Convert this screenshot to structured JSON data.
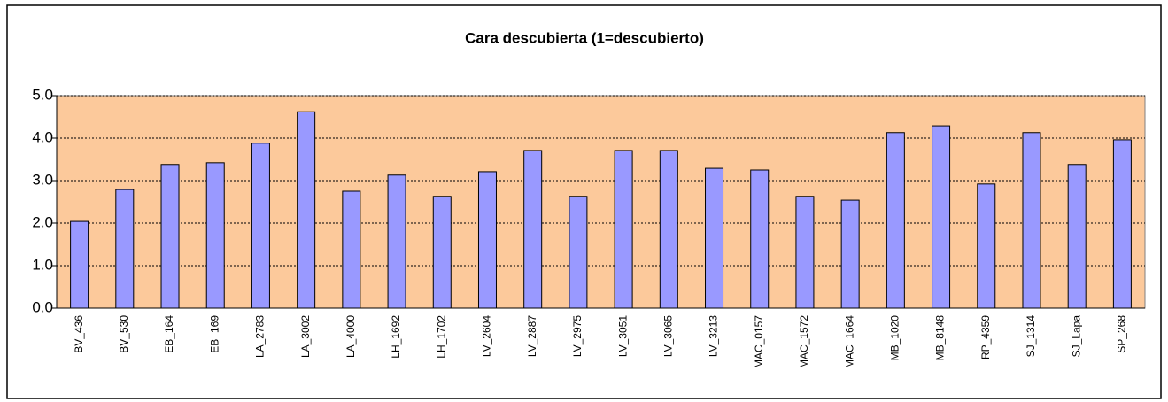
{
  "chart_data": {
    "type": "bar",
    "title": "Cara descubierta (1=descubierto)",
    "categories": [
      "BV_436",
      "BV_530",
      "EB_164",
      "EB_169",
      "LA_2783",
      "LA_3002",
      "LA_4000",
      "LH_1692",
      "LH_1702",
      "LV_2604",
      "LV_2887",
      "LV_2975",
      "LV_3051",
      "LV_3065",
      "LV_3213",
      "MAC_0157",
      "MAC_1572",
      "MAC_1664",
      "MB_1020",
      "MB_8148",
      "RP_4359",
      "SJ_1314",
      "SJ_Lapa",
      "SP_268"
    ],
    "values": [
      2.04,
      2.79,
      3.38,
      3.42,
      3.88,
      4.62,
      2.75,
      3.13,
      2.63,
      3.21,
      3.71,
      2.63,
      3.71,
      3.71,
      3.29,
      3.25,
      2.63,
      2.54,
      4.13,
      4.29,
      2.92,
      4.13,
      3.38,
      3.96
    ],
    "color": "#9999ff",
    "plot_background": "#fcc99b",
    "ylim": [
      0,
      5
    ],
    "yticks": [
      {
        "value": 0,
        "label": "0.0"
      },
      {
        "value": 1,
        "label": "1.0"
      },
      {
        "value": 2,
        "label": "2.0"
      },
      {
        "value": 3,
        "label": "3.0"
      },
      {
        "value": 4,
        "label": "4.0"
      },
      {
        "value": 5,
        "label": "5.0"
      }
    ],
    "grid": true
  }
}
